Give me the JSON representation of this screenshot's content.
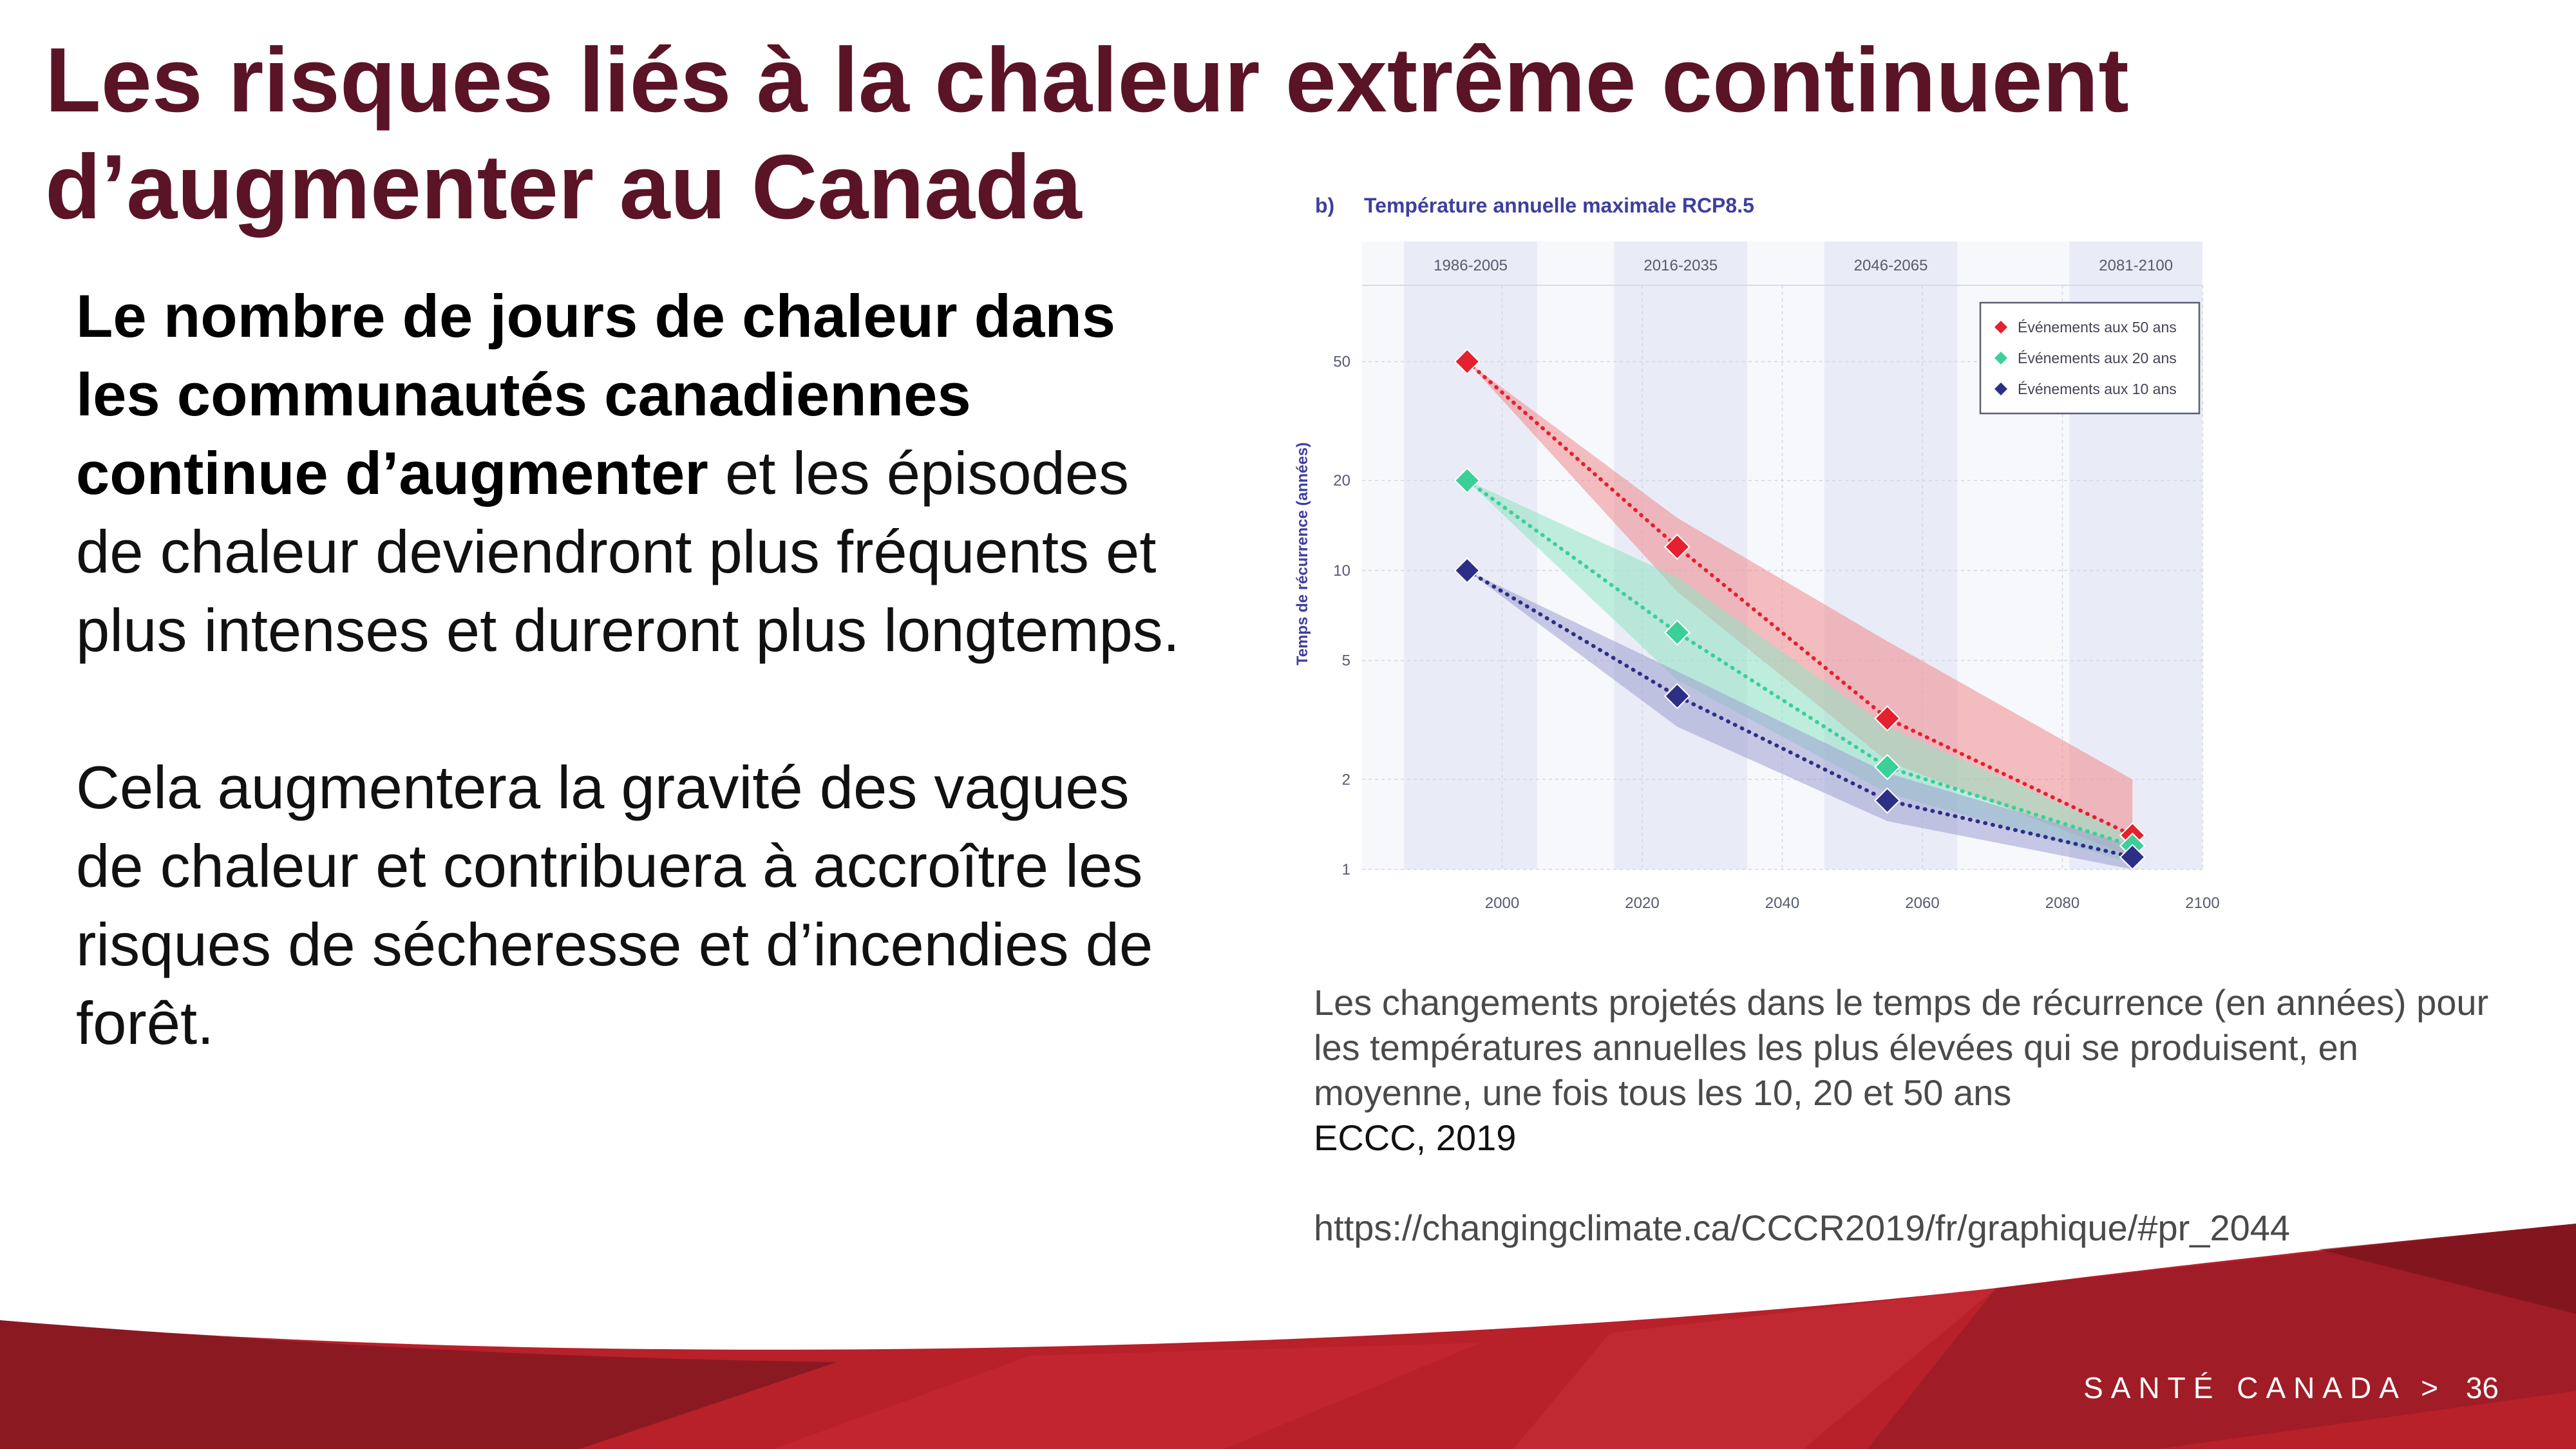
{
  "slide": {
    "title": "Les risques liés à la chaleur extrême continuent d’augmenter au Canada",
    "body": {
      "bold": "Le nombre de jours de chaleur dans les communautés canadiennes continue d’augmenter",
      "rest": " et les épisodes de chaleur deviendront plus fréquents et plus intenses et dureront plus longtemps.",
      "para2": "Cela augmentera la gravité des vagues de chaleur et contribuera à accroître les risques de sécheresse et d’incendies de forêt."
    },
    "caption": {
      "line": "Les changements projetés dans le temps de récurrence (en années) pour les températures annuelles les plus élevées qui se produisent, en moyenne, une fois tous les 10, 20 et 50 ans",
      "source": "ECCC, 2019",
      "url": "https://changingclimate.ca/CCCR2019/fr/graphique/#pr_2044"
    },
    "footer": {
      "label": "SANTÉ CANADA",
      "arrow": ">",
      "page": "36"
    }
  },
  "colors": {
    "title": "#5a1426",
    "chart_axis_text": "#3e3f9e",
    "footer_red": "#b8202a",
    "footer_dark": "#7c1720"
  },
  "chart_data": {
    "type": "line",
    "panel_label": "b)",
    "title": "Température annuelle maximale RCP8.5",
    "ylabel": "Temps de récurrence (années)",
    "xlabel": "",
    "y_scale": "log",
    "ylim": [
      1,
      90
    ],
    "xlim": [
      1980,
      2100
    ],
    "x_ticks": [
      2000,
      2020,
      2040,
      2060,
      2080,
      2100
    ],
    "y_ticks": [
      1,
      2,
      5,
      10,
      20,
      50
    ],
    "grid": true,
    "legend_position": "top-right",
    "periods": [
      {
        "label": "1986-2005",
        "range": [
          1986,
          2005
        ],
        "shaded": true
      },
      {
        "label": "2016-2035",
        "range": [
          2016,
          2035
        ],
        "shaded": true
      },
      {
        "label": "2046-2065",
        "range": [
          2046,
          2065
        ],
        "shaded": true
      },
      {
        "label": "2081-2100",
        "range": [
          2081,
          2100
        ],
        "shaded": true
      }
    ],
    "x": [
      1995,
      2025,
      2055,
      2090
    ],
    "series": [
      {
        "name": "Événements aux 50 ans",
        "color": "#e5202f",
        "band_color": "#f08a8d",
        "values": [
          50,
          12,
          3.2,
          1.3
        ],
        "band_low": [
          50,
          8.5,
          2.3,
          1.1
        ],
        "band_high": [
          50,
          15,
          5.8,
          2.0
        ]
      },
      {
        "name": "Événements aux 20 ans",
        "color": "#3ccf98",
        "band_color": "#8fe3c3",
        "values": [
          20,
          6.2,
          2.2,
          1.2
        ],
        "band_low": [
          20,
          4.3,
          1.8,
          1.05
        ],
        "band_high": [
          20,
          9.5,
          3.0,
          1.3
        ]
      },
      {
        "name": "Événements aux 10 ans",
        "color": "#2d2f86",
        "band_color": "#9c9fd0",
        "values": [
          10,
          3.8,
          1.7,
          1.1
        ],
        "band_low": [
          10,
          3.0,
          1.45,
          1.0
        ],
        "band_high": [
          10,
          4.6,
          2.1,
          1.2
        ]
      }
    ]
  }
}
